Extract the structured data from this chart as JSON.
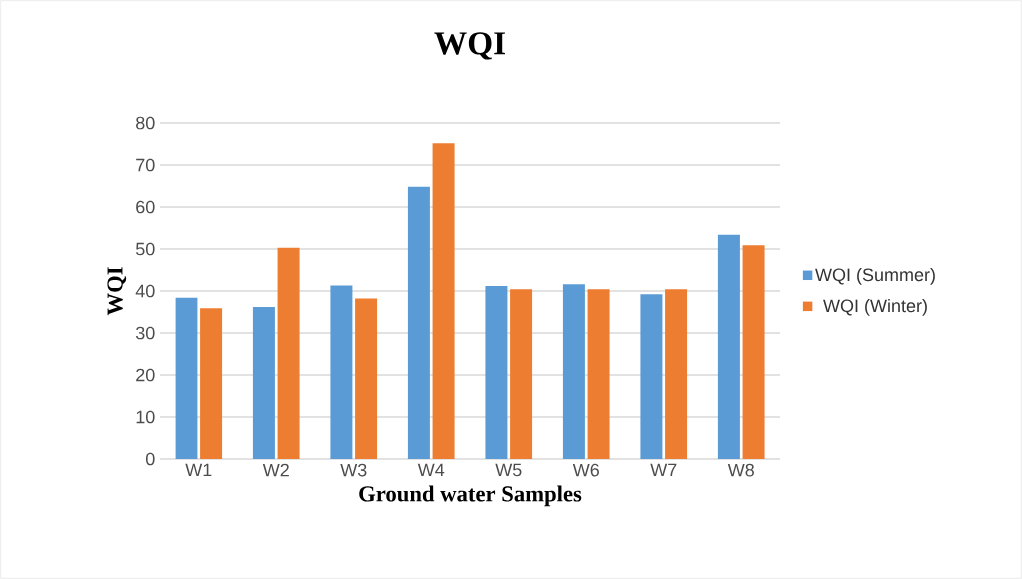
{
  "chart_data": {
    "type": "bar",
    "title": "WQI",
    "xlabel": "Ground water Samples",
    "ylabel": "WQI",
    "categories": [
      "W1",
      "W2",
      "W3",
      "W4",
      "W5",
      "W6",
      "W7",
      "W8"
    ],
    "series": [
      {
        "name": "WQI (Summer)",
        "color": "#5b9bd5",
        "values": [
          38.4,
          36.2,
          41.3,
          64.8,
          41.2,
          41.6,
          39.2,
          53.4
        ]
      },
      {
        "name": "WQI (Winter)",
        "color": "#ed7d31",
        "values": [
          35.9,
          50.3,
          38.2,
          75.2,
          40.4,
          40.4,
          40.4,
          50.9
        ]
      }
    ],
    "ylim": [
      0,
      80
    ],
    "yticks": [
      0,
      10,
      20,
      30,
      40,
      50,
      60,
      70,
      80
    ],
    "grid": "y",
    "legend": "right"
  }
}
